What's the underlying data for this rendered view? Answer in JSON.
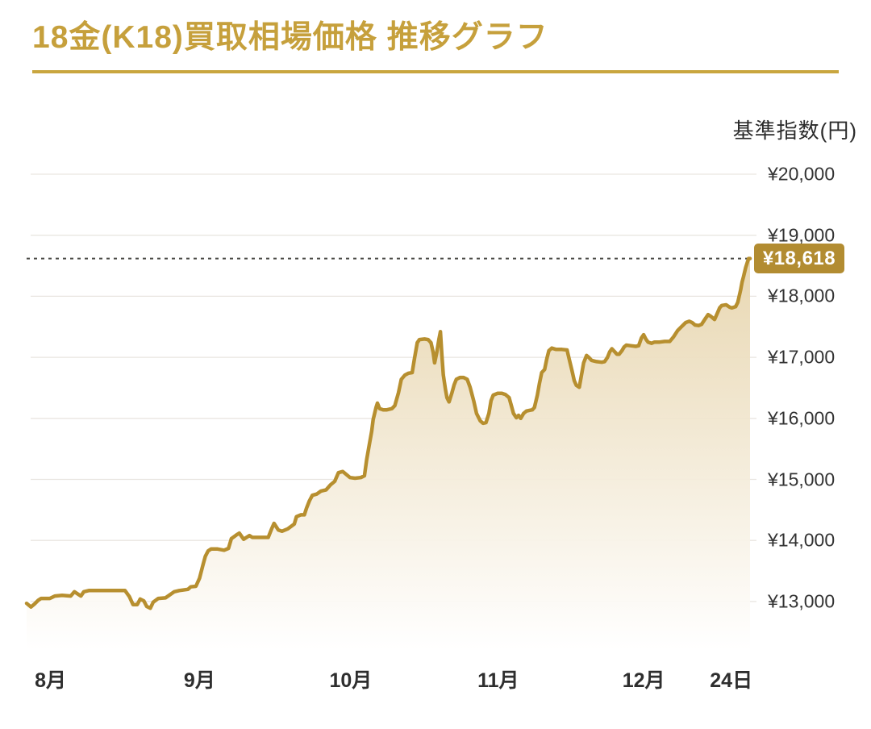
{
  "header": {
    "title": "18金(K18)買取相場価格 推移グラフ"
  },
  "colors": {
    "title_gold": "#C6A03C",
    "underline_gold": "#C9A63F",
    "line_gold": "#B78F2F",
    "badge_gold": "#B28C31",
    "fill_top": "#E2CC9C",
    "fill_bottom": "#FFFFFF",
    "gridline": "#E9E6E1",
    "dotted_line": "#4A4A46",
    "text_dark": "#2E2E2E"
  },
  "chart_data": {
    "type": "area",
    "title": "18金(K18)買取相場価格 推移グラフ",
    "xlabel": "",
    "ylabel": "基準指数(円)",
    "grid": true,
    "legend": false,
    "ylim": [
      12100,
      20000
    ],
    "y_ticks": [
      {
        "value": 20000,
        "label": "¥20,000"
      },
      {
        "value": 19000,
        "label": "¥19,000"
      },
      {
        "value": 18000,
        "label": "¥18,000"
      },
      {
        "value": 17000,
        "label": "¥17,000"
      },
      {
        "value": 16000,
        "label": "¥16,000"
      },
      {
        "value": 15000,
        "label": "¥15,000"
      },
      {
        "value": 14000,
        "label": "¥14,000"
      },
      {
        "value": 13000,
        "label": "¥13,000"
      }
    ],
    "x_ticks": [
      {
        "label": "8月",
        "pct": 3.3
      },
      {
        "label": "9月",
        "pct": 23.9
      },
      {
        "label": "10月",
        "pct": 44.8
      },
      {
        "label": "11月",
        "pct": 65.2
      },
      {
        "label": "12月",
        "pct": 85.3
      },
      {
        "label": "24日",
        "pct": 97.4
      }
    ],
    "current": {
      "value": 18618,
      "label": "¥18,618"
    },
    "points": [
      [
        0,
        12970
      ],
      [
        0.6,
        12910
      ],
      [
        1.1,
        12960
      ],
      [
        1.6,
        13020
      ],
      [
        2,
        13050
      ],
      [
        3.2,
        13050
      ],
      [
        3.9,
        13090
      ],
      [
        4.9,
        13100
      ],
      [
        6.1,
        13090
      ],
      [
        6.6,
        13160
      ],
      [
        7.1,
        13120
      ],
      [
        7.5,
        13090
      ],
      [
        7.9,
        13160
      ],
      [
        8.6,
        13180
      ],
      [
        13.6,
        13180
      ],
      [
        14.2,
        13080
      ],
      [
        14.7,
        12950
      ],
      [
        15.3,
        12950
      ],
      [
        15.7,
        13040
      ],
      [
        16.2,
        13010
      ],
      [
        16.6,
        12920
      ],
      [
        17.1,
        12890
      ],
      [
        17.5,
        12990
      ],
      [
        18.2,
        13050
      ],
      [
        19.2,
        13060
      ],
      [
        20.4,
        13160
      ],
      [
        21.1,
        13180
      ],
      [
        22.3,
        13200
      ],
      [
        22.7,
        13240
      ],
      [
        23.4,
        13250
      ],
      [
        23.9,
        13380
      ],
      [
        24.4,
        13610
      ],
      [
        24.7,
        13740
      ],
      [
        25.1,
        13830
      ],
      [
        25.5,
        13860
      ],
      [
        26.4,
        13860
      ],
      [
        27.3,
        13840
      ],
      [
        27.9,
        13870
      ],
      [
        28.3,
        14030
      ],
      [
        29,
        14090
      ],
      [
        29.4,
        14120
      ],
      [
        30,
        14020
      ],
      [
        30.8,
        14080
      ],
      [
        31.2,
        14050
      ],
      [
        33.4,
        14050
      ],
      [
        33.9,
        14200
      ],
      [
        34.2,
        14280
      ],
      [
        34.8,
        14170
      ],
      [
        35.3,
        14150
      ],
      [
        36.1,
        14190
      ],
      [
        37,
        14270
      ],
      [
        37.3,
        14390
      ],
      [
        37.9,
        14420
      ],
      [
        38.4,
        14420
      ],
      [
        38.7,
        14530
      ],
      [
        39.1,
        14650
      ],
      [
        39.5,
        14740
      ],
      [
        40.1,
        14760
      ],
      [
        40.7,
        14810
      ],
      [
        41.4,
        14830
      ],
      [
        42,
        14910
      ],
      [
        42.6,
        14970
      ],
      [
        43.1,
        15110
      ],
      [
        43.7,
        15130
      ],
      [
        44.3,
        15070
      ],
      [
        44.7,
        15030
      ],
      [
        45.4,
        15020
      ],
      [
        46.2,
        15030
      ],
      [
        46.7,
        15060
      ],
      [
        47,
        15320
      ],
      [
        47.4,
        15590
      ],
      [
        47.7,
        15790
      ],
      [
        47.9,
        15980
      ],
      [
        48.3,
        16180
      ],
      [
        48.5,
        16250
      ],
      [
        48.8,
        16160
      ],
      [
        49.3,
        16140
      ],
      [
        49.8,
        16140
      ],
      [
        50.5,
        16160
      ],
      [
        50.9,
        16210
      ],
      [
        51.4,
        16420
      ],
      [
        51.8,
        16640
      ],
      [
        52.3,
        16710
      ],
      [
        52.8,
        16740
      ],
      [
        53.3,
        16750
      ],
      [
        53.6,
        16970
      ],
      [
        54,
        17240
      ],
      [
        54.3,
        17290
      ],
      [
        55,
        17300
      ],
      [
        55.5,
        17290
      ],
      [
        55.9,
        17240
      ],
      [
        56.2,
        17080
      ],
      [
        56.4,
        16910
      ],
      [
        56.7,
        17080
      ],
      [
        57,
        17300
      ],
      [
        57.2,
        17420
      ],
      [
        57.4,
        17040
      ],
      [
        57.6,
        16710
      ],
      [
        57.9,
        16470
      ],
      [
        58.1,
        16340
      ],
      [
        58.4,
        16270
      ],
      [
        58.8,
        16420
      ],
      [
        59.1,
        16550
      ],
      [
        59.4,
        16640
      ],
      [
        59.9,
        16670
      ],
      [
        60.4,
        16670
      ],
      [
        60.9,
        16640
      ],
      [
        61.3,
        16510
      ],
      [
        61.8,
        16290
      ],
      [
        62.2,
        16080
      ],
      [
        62.7,
        15960
      ],
      [
        63.1,
        15920
      ],
      [
        63.5,
        15930
      ],
      [
        63.9,
        16080
      ],
      [
        64.2,
        16290
      ],
      [
        64.5,
        16380
      ],
      [
        65.1,
        16410
      ],
      [
        65.7,
        16410
      ],
      [
        66.2,
        16390
      ],
      [
        66.7,
        16340
      ],
      [
        67,
        16210
      ],
      [
        67.3,
        16080
      ],
      [
        67.7,
        16010
      ],
      [
        68,
        16050
      ],
      [
        68.3,
        16000
      ],
      [
        68.7,
        16080
      ],
      [
        69.1,
        16120
      ],
      [
        69.9,
        16140
      ],
      [
        70.2,
        16180
      ],
      [
        70.6,
        16380
      ],
      [
        70.9,
        16580
      ],
      [
        71.2,
        16750
      ],
      [
        71.6,
        16800
      ],
      [
        71.9,
        16970
      ],
      [
        72.2,
        17110
      ],
      [
        72.6,
        17150
      ],
      [
        73.2,
        17130
      ],
      [
        74,
        17130
      ],
      [
        74.7,
        17120
      ],
      [
        75,
        16970
      ],
      [
        75.4,
        16780
      ],
      [
        75.7,
        16620
      ],
      [
        76,
        16540
      ],
      [
        76.4,
        16510
      ],
      [
        76.7,
        16710
      ],
      [
        77,
        16910
      ],
      [
        77.4,
        17030
      ],
      [
        77.7,
        17000
      ],
      [
        78.1,
        16950
      ],
      [
        78.8,
        16930
      ],
      [
        79.5,
        16920
      ],
      [
        79.9,
        16930
      ],
      [
        80.3,
        17000
      ],
      [
        80.6,
        17090
      ],
      [
        80.9,
        17140
      ],
      [
        81.3,
        17090
      ],
      [
        81.6,
        17050
      ],
      [
        81.9,
        17050
      ],
      [
        82.3,
        17110
      ],
      [
        82.6,
        17170
      ],
      [
        82.9,
        17200
      ],
      [
        83.5,
        17190
      ],
      [
        84.2,
        17180
      ],
      [
        84.6,
        17190
      ],
      [
        85,
        17320
      ],
      [
        85.3,
        17370
      ],
      [
        85.6,
        17300
      ],
      [
        85.9,
        17250
      ],
      [
        86.4,
        17230
      ],
      [
        86.8,
        17250
      ],
      [
        87.5,
        17250
      ],
      [
        88.2,
        17260
      ],
      [
        88.9,
        17260
      ],
      [
        89.4,
        17330
      ],
      [
        90,
        17440
      ],
      [
        90.5,
        17500
      ],
      [
        91.1,
        17570
      ],
      [
        91.6,
        17590
      ],
      [
        92,
        17570
      ],
      [
        92.4,
        17530
      ],
      [
        92.9,
        17520
      ],
      [
        93.3,
        17540
      ],
      [
        93.8,
        17630
      ],
      [
        94.2,
        17700
      ],
      [
        94.6,
        17670
      ],
      [
        95.1,
        17620
      ],
      [
        95.4,
        17700
      ],
      [
        95.8,
        17810
      ],
      [
        96.1,
        17850
      ],
      [
        96.7,
        17860
      ],
      [
        97.2,
        17820
      ],
      [
        97.5,
        17810
      ],
      [
        98,
        17830
      ],
      [
        98.3,
        17900
      ],
      [
        98.7,
        18100
      ],
      [
        98.9,
        18230
      ],
      [
        99.1,
        18320
      ],
      [
        99.4,
        18470
      ],
      [
        99.8,
        18618
      ],
      [
        100,
        18618
      ]
    ]
  }
}
